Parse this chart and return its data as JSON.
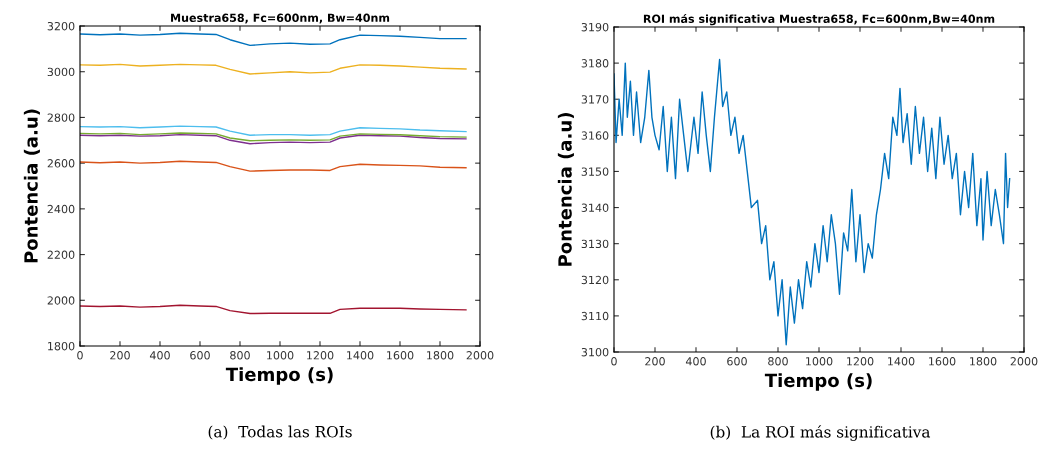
{
  "chart_data": [
    {
      "type": "line",
      "title": "Muestra658, Fc=600nm, Bw=40nm",
      "xlabel": "Tiempo (s)",
      "ylabel": "Pontencia (a.u)",
      "annotations": [
        "(a)  Todas las ROIs"
      ],
      "x": [
        0,
        100,
        200,
        300,
        400,
        500,
        600,
        680,
        750,
        850,
        950,
        1050,
        1150,
        1250,
        1300,
        1400,
        1500,
        1600,
        1700,
        1800,
        1930
      ],
      "series": [
        {
          "color": "#0072bd",
          "values": [
            3165,
            3162,
            3165,
            3160,
            3163,
            3168,
            3165,
            3163,
            3140,
            3115,
            3122,
            3125,
            3120,
            3122,
            3140,
            3160,
            3158,
            3155,
            3150,
            3145,
            3145
          ]
        },
        {
          "color": "#edb120",
          "values": [
            3030,
            3028,
            3032,
            3025,
            3028,
            3032,
            3030,
            3028,
            3010,
            2990,
            2995,
            3000,
            2995,
            2998,
            3015,
            3030,
            3028,
            3025,
            3020,
            3015,
            3012
          ]
        },
        {
          "color": "#4dbeee",
          "values": [
            2760,
            2758,
            2760,
            2755,
            2758,
            2762,
            2760,
            2758,
            2740,
            2722,
            2725,
            2725,
            2722,
            2725,
            2740,
            2755,
            2752,
            2750,
            2745,
            2742,
            2738
          ]
        },
        {
          "color": "#7e2f8e",
          "values": [
            2722,
            2720,
            2722,
            2718,
            2720,
            2725,
            2722,
            2720,
            2700,
            2685,
            2690,
            2692,
            2690,
            2692,
            2710,
            2722,
            2720,
            2718,
            2712,
            2708,
            2706
          ]
        },
        {
          "color": "#77ac30",
          "values": [
            2730,
            2728,
            2730,
            2725,
            2728,
            2732,
            2730,
            2728,
            2710,
            2698,
            2700,
            2702,
            2700,
            2702,
            2718,
            2728,
            2726,
            2724,
            2720,
            2716,
            2714
          ]
        },
        {
          "color": "#d95319",
          "values": [
            2605,
            2602,
            2605,
            2600,
            2603,
            2608,
            2605,
            2603,
            2585,
            2565,
            2568,
            2570,
            2570,
            2568,
            2585,
            2595,
            2592,
            2590,
            2588,
            2582,
            2580
          ]
        },
        {
          "color": "#a2142f",
          "values": [
            1975,
            1973,
            1975,
            1970,
            1973,
            1978,
            1975,
            1973,
            1955,
            1942,
            1943,
            1943,
            1943,
            1943,
            1960,
            1965,
            1965,
            1965,
            1962,
            1960,
            1958
          ]
        }
      ],
      "xlim": [
        0,
        2000
      ],
      "xticks": [
        0,
        200,
        400,
        600,
        800,
        1000,
        1200,
        1400,
        1600,
        1800,
        2000
      ],
      "ylim": [
        1800,
        3200
      ],
      "yticks": [
        1800,
        2000,
        2200,
        2400,
        2600,
        2800,
        3000,
        3200
      ],
      "grid": false,
      "legend": false
    },
    {
      "type": "line",
      "title": "ROI más significativa Muestra658, Fc=600nm,Bw=40nm",
      "xlabel": "Tiempo (s)",
      "ylabel": "Pontencia (a.u)",
      "annotations": [
        "(b)  La ROI más significativa"
      ],
      "x": [
        0,
        10,
        25,
        40,
        55,
        65,
        80,
        95,
        110,
        130,
        150,
        170,
        185,
        200,
        220,
        240,
        260,
        280,
        300,
        320,
        340,
        360,
        390,
        410,
        430,
        450,
        470,
        490,
        515,
        530,
        550,
        570,
        590,
        610,
        630,
        650,
        670,
        700,
        720,
        740,
        760,
        780,
        800,
        820,
        840,
        860,
        880,
        900,
        920,
        940,
        960,
        980,
        1000,
        1020,
        1040,
        1060,
        1080,
        1100,
        1120,
        1140,
        1160,
        1180,
        1200,
        1220,
        1240,
        1260,
        1280,
        1300,
        1320,
        1340,
        1360,
        1380,
        1395,
        1410,
        1430,
        1450,
        1470,
        1490,
        1510,
        1530,
        1550,
        1570,
        1590,
        1610,
        1630,
        1650,
        1670,
        1690,
        1710,
        1730,
        1750,
        1770,
        1790,
        1800,
        1820,
        1840,
        1860,
        1880,
        1900,
        1910,
        1920,
        1930
      ],
      "series": [
        {
          "color": "#0072bd",
          "values": [
            3177,
            3158,
            3170,
            3160,
            3180,
            3165,
            3175,
            3160,
            3172,
            3158,
            3165,
            3178,
            3165,
            3160,
            3156,
            3168,
            3150,
            3165,
            3148,
            3170,
            3160,
            3150,
            3165,
            3155,
            3172,
            3160,
            3150,
            3165,
            3181,
            3168,
            3172,
            3160,
            3165,
            3155,
            3160,
            3150,
            3140,
            3142,
            3130,
            3135,
            3120,
            3125,
            3110,
            3120,
            3102,
            3118,
            3108,
            3120,
            3112,
            3125,
            3118,
            3130,
            3122,
            3135,
            3125,
            3138,
            3130,
            3116,
            3133,
            3128,
            3145,
            3125,
            3138,
            3122,
            3130,
            3126,
            3138,
            3145,
            3155,
            3148,
            3165,
            3160,
            3173,
            3158,
            3166,
            3152,
            3168,
            3155,
            3165,
            3150,
            3162,
            3148,
            3165,
            3152,
            3160,
            3148,
            3155,
            3138,
            3150,
            3140,
            3155,
            3135,
            3148,
            3131,
            3150,
            3135,
            3145,
            3138,
            3130,
            3155,
            3140,
            3148
          ]
        }
      ],
      "xlim": [
        0,
        2000
      ],
      "xticks": [
        0,
        200,
        400,
        600,
        800,
        1000,
        1200,
        1400,
        1600,
        1800,
        2000
      ],
      "ylim": [
        3100,
        3190
      ],
      "yticks": [
        3100,
        3110,
        3120,
        3130,
        3140,
        3150,
        3160,
        3170,
        3180,
        3190
      ],
      "grid": false,
      "legend": false
    }
  ]
}
